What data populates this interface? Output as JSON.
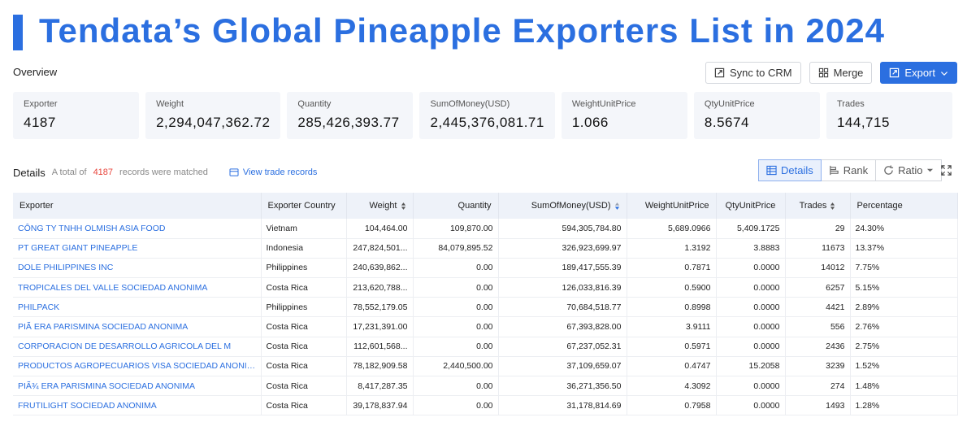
{
  "title": "Tendata’s Global Pineapple Exporters List in 2024",
  "overview_label": "Overview",
  "toolbar": {
    "sync": "Sync to CRM",
    "merge": "Merge",
    "export": "Export"
  },
  "stats": [
    {
      "label": "Exporter",
      "value": "4187"
    },
    {
      "label": "Weight",
      "value": "2,294,047,362.72"
    },
    {
      "label": "Quantity",
      "value": "285,426,393.77"
    },
    {
      "label": "SumOfMoney(USD)",
      "value": "2,445,376,081.71"
    },
    {
      "label": "WeightUnitPrice",
      "value": "1.066"
    },
    {
      "label": "QtyUnitPrice",
      "value": "8.5674"
    },
    {
      "label": "Trades",
      "value": "144,715"
    }
  ],
  "details": {
    "label": "Details",
    "prefix": "A total of",
    "count": "4187",
    "suffix": "records were matched",
    "view_link": "View trade records"
  },
  "view_tabs": {
    "details": "Details",
    "rank": "Rank",
    "ratio": "Ratio"
  },
  "table": {
    "headers": [
      "Exporter",
      "Exporter Country",
      "Weight",
      "Quantity",
      "SumOfMoney(USD)",
      "WeightUnitPrice",
      "QtyUnitPrice",
      "Trades",
      "Percentage"
    ],
    "rows": [
      [
        "CÔNG TY TNHH OLMISH ASIA FOOD",
        "Vietnam",
        "104,464.00",
        "109,870.00",
        "594,305,784.80",
        "5,689.0966",
        "5,409.1725",
        "29",
        "24.30%"
      ],
      [
        "PT GREAT GIANT PINEAPPLE",
        "Indonesia",
        "247,824,501...",
        "84,079,895.52",
        "326,923,699.97",
        "1.3192",
        "3.8883",
        "11673",
        "13.37%"
      ],
      [
        "DOLE PHILIPPINES INC",
        "Philippines",
        "240,639,862...",
        "0.00",
        "189,417,555.39",
        "0.7871",
        "0.0000",
        "14012",
        "7.75%"
      ],
      [
        "TROPICALES DEL VALLE SOCIEDAD ANONIMA",
        "Costa Rica",
        "213,620,788...",
        "0.00",
        "126,033,816.39",
        "0.5900",
        "0.0000",
        "6257",
        "5.15%"
      ],
      [
        "PHILPACK",
        "Philippines",
        "78,552,179.05",
        "0.00",
        "70,684,518.77",
        "0.8998",
        "0.0000",
        "4421",
        "2.89%"
      ],
      [
        "PIÃ ERA PARISMINA SOCIEDAD ANONIMA",
        "Costa Rica",
        "17,231,391.00",
        "0.00",
        "67,393,828.00",
        "3.9111",
        "0.0000",
        "556",
        "2.76%"
      ],
      [
        "CORPORACION DE DESARROLLO AGRICOLA DEL M",
        "Costa Rica",
        "112,601,568...",
        "0.00",
        "67,237,052.31",
        "0.5971",
        "0.0000",
        "2436",
        "2.75%"
      ],
      [
        "PRODUCTOS AGROPECUARIOS VISA SOCIEDAD ANONIMA",
        "Costa Rica",
        "78,182,909.58",
        "2,440,500.00",
        "37,109,659.07",
        "0.4747",
        "15.2058",
        "3239",
        "1.52%"
      ],
      [
        "PIÃ¾ ERA PARISMINA SOCIEDAD ANONIMA",
        "Costa Rica",
        "8,417,287.35",
        "0.00",
        "36,271,356.50",
        "4.3092",
        "0.0000",
        "274",
        "1.48%"
      ],
      [
        "FRUTILIGHT SOCIEDAD ANONIMA",
        "Costa Rica",
        "39,178,837.94",
        "0.00",
        "31,178,814.69",
        "0.7958",
        "0.0000",
        "1493",
        "1.28%"
      ]
    ]
  }
}
